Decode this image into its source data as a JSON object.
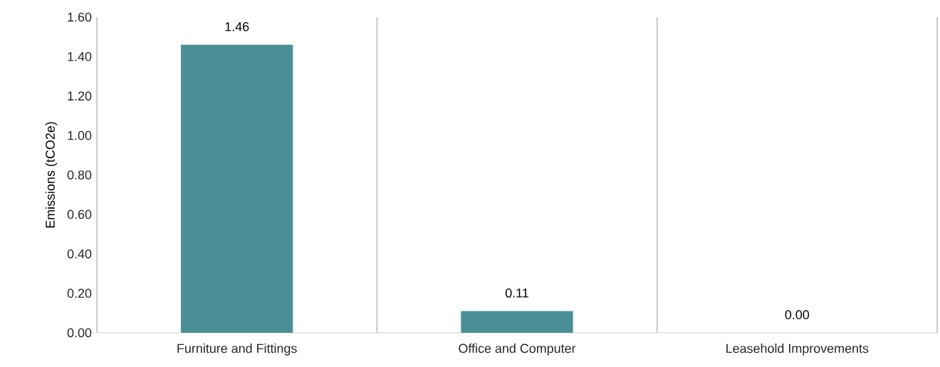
{
  "chart_data": {
    "type": "bar",
    "ylabel": "Emissions (tCO2e)",
    "categories": [
      "Furniture and Fittings",
      "Office and Computer",
      "Leasehold Improvements"
    ],
    "values": [
      1.46,
      0.11,
      0
    ],
    "value_labels": [
      "1.46",
      "0.11",
      "0.00"
    ],
    "color": "#4a8f98",
    "ylim": [
      0,
      1.6
    ],
    "yticks": [
      {
        "value": 0,
        "label": "0.00"
      },
      {
        "value": 0.2,
        "label": "0.20"
      },
      {
        "value": 0.4,
        "label": "0.40"
      },
      {
        "value": 0.6,
        "label": "0.60"
      },
      {
        "value": 0.8,
        "label": "0.80"
      },
      {
        "value": 1.0,
        "label": "1.00"
      },
      {
        "value": 1.2,
        "label": "1.20"
      },
      {
        "value": 1.4,
        "label": "1.40"
      },
      {
        "value": 1.6,
        "label": "1.60"
      }
    ],
    "grid": "x"
  }
}
